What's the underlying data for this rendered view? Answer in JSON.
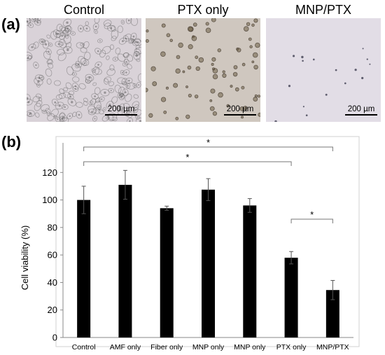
{
  "panel_a": {
    "label": "(a)",
    "images": [
      {
        "title": "Control",
        "scale_bar": "200 µm"
      },
      {
        "title": "PTX only",
        "scale_bar": "200 µm"
      },
      {
        "title": "MNP/PTX",
        "scale_bar": "200 µm"
      }
    ]
  },
  "panel_b": {
    "label": "(b)"
  },
  "significance": [
    {
      "from": "Control",
      "to": "MNP/PTX",
      "label": "*"
    },
    {
      "from": "Control",
      "to": "PTX only",
      "label": "*"
    },
    {
      "from": "PTX only",
      "to": "MNP/PTX",
      "label": "*"
    }
  ],
  "colors": {
    "bar": "#000000",
    "background_a": "#d9d2d8",
    "background_b": "#cfc7bf",
    "background_c": "#e2dde6"
  },
  "chart_data": {
    "type": "bar",
    "categories": [
      "Control",
      "AMF only",
      "Fiber only",
      "MNP only",
      "MNP only",
      "PTX only",
      "MNP/PTX"
    ],
    "values": [
      100,
      111,
      94,
      107.5,
      96,
      58,
      34.5
    ],
    "errors": [
      10,
      10.5,
      1.5,
      8,
      5,
      4.5,
      7
    ],
    "title": "",
    "xlabel": "",
    "ylabel": "Cell viability (%)",
    "ylim": [
      0,
      140
    ],
    "yticks": [
      0,
      20,
      40,
      60,
      80,
      100,
      120
    ],
    "grid": false,
    "legend": "none"
  }
}
